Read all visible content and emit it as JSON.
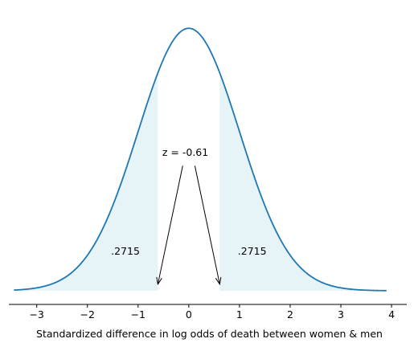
{
  "chart_data": {
    "type": "line",
    "title": "",
    "xlabel": "Standardized difference in log odds of death between women & men",
    "ylabel": "",
    "xlim": [
      -3.55,
      4.3
    ],
    "ylim": [
      0,
      0.42
    ],
    "x_ticks": [
      -3,
      -2,
      -1,
      0,
      1,
      2,
      3,
      4
    ],
    "x_tick_labels": [
      "−3",
      "−2",
      "−1",
      "0",
      "1",
      "2",
      "3",
      "4"
    ],
    "grid": false,
    "series": [
      {
        "distribution": "standard normal density",
        "x_range": [
          -3.45,
          3.9
        ],
        "color": "#1f77b4"
      }
    ],
    "shaded_regions": [
      {
        "x_range": [
          -3.45,
          -0.61
        ],
        "label": ".2715",
        "label_at": [
          -1.25,
          0.05
        ]
      },
      {
        "x_range": [
          0.61,
          3.9
        ],
        "label": ".2715",
        "label_at": [
          1.25,
          0.05
        ]
      }
    ],
    "shade_color": "#add8e6",
    "annotation": {
      "text": "z = -0.61",
      "text_at": [
        -0.1,
        0.205
      ],
      "arrows": [
        {
          "from": [
            -0.12,
            0.19
          ],
          "to": [
            -0.61,
            0.01
          ]
        },
        {
          "from": [
            0.12,
            0.19
          ],
          "to": [
            0.61,
            0.01
          ]
        }
      ]
    }
  }
}
